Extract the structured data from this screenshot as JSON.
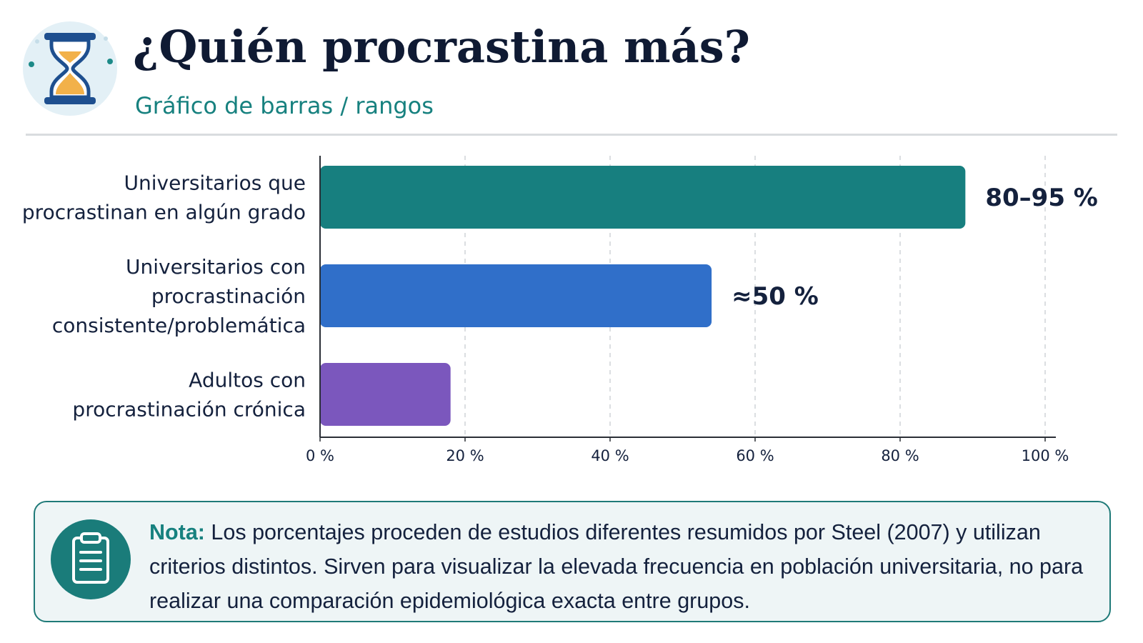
{
  "header": {
    "title": "¿Quién procrastina más?",
    "subtitle": "Gráfico de barras / rangos",
    "icon": "hourglass-icon"
  },
  "chart_data": {
    "type": "bar",
    "orientation": "horizontal",
    "categories": [
      [
        "Universitarios que",
        "procrastinan en algún grado"
      ],
      [
        "Universitarios con",
        "procrastinación",
        "consistente/problemática"
      ],
      [
        "Adultos con",
        "procrastinación crónica"
      ]
    ],
    "values": [
      89,
      54,
      18
    ],
    "value_labels": [
      "80–95 %",
      "≈50 %",
      ""
    ],
    "colors": [
      "#177f7f",
      "#306fc9",
      "#7b57bd"
    ],
    "xlim": [
      0,
      100
    ],
    "xticks": [
      0,
      20,
      40,
      60,
      80,
      100
    ],
    "xtick_labels": [
      "0 %",
      "20 %",
      "40 %",
      "60 %",
      "80 %",
      "100 %"
    ],
    "grid": "vertical-dashed",
    "xlabel": "",
    "ylabel": ""
  },
  "note": {
    "icon": "clipboard-icon",
    "lead": "Nota:",
    "text": "Los porcentajes proceden de estudios diferentes resumidos por Steel (2007) y utilizan criterios distintos. Sirven para visualizar la elevada frecuencia en población universitaria, no para realizar una comparación epidemiológica exacta entre grupos."
  },
  "colors": {
    "accent": "#17817f",
    "title": "#0f1a33"
  }
}
